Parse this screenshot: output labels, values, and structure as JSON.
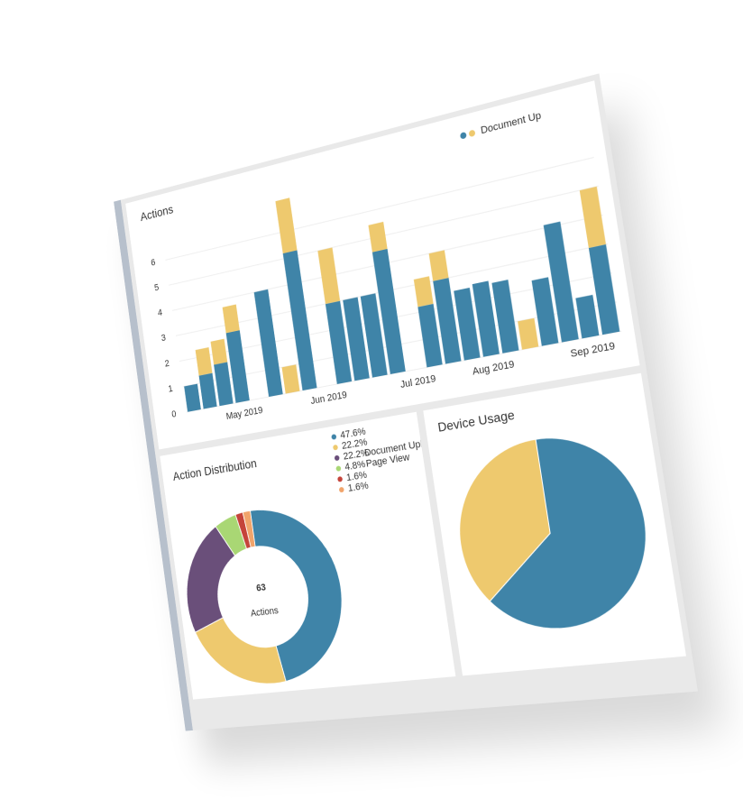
{
  "chart_data": [
    {
      "type": "stacked-bar",
      "title": "Actions",
      "categories": [
        null,
        null,
        null,
        "May 2019",
        null,
        null,
        null,
        null,
        "Jun 2019",
        null,
        null,
        null,
        null,
        "Jul 2019",
        null,
        null,
        null,
        "Aug 2019",
        null,
        null,
        null,
        null,
        "Sep 2019",
        null
      ],
      "series": [
        {
          "color": "#3f84a8",
          "values": [
            1,
            1.3,
            1.6,
            2.7,
            null,
            4,
            0,
            5.2,
            null,
            3,
            3,
            3,
            4.5,
            null,
            2.2,
            3,
            2.5,
            2.6,
            2.5,
            0,
            2.3,
            4.1,
            1.4,
            3
          ]
        },
        {
          "name": "Document Up",
          "color": "#eec96e",
          "values": [
            0,
            1,
            0.9,
            1,
            null,
            0,
            1,
            2,
            null,
            2,
            0,
            0,
            1,
            null,
            1,
            1,
            0,
            0,
            0,
            1,
            0,
            0,
            0,
            2
          ]
        }
      ],
      "ylim": [
        0,
        7
      ],
      "yticks": [
        0,
        1,
        2,
        3,
        4,
        5,
        6
      ],
      "grid": true,
      "legend": "top-right"
    },
    {
      "type": "donut",
      "title": "Action Distribution",
      "total": 63,
      "total_label": "Actions",
      "values": [
        47.6,
        22.2,
        22.2,
        4.8,
        1.6,
        1.6
      ],
      "value_labels": [
        "47.6%",
        "22.2%",
        "22.2%",
        "4.8%",
        "1.6%",
        "1.6%"
      ],
      "names": [
        null,
        null,
        "Document Upload",
        "Page View",
        null,
        null
      ],
      "colors": [
        "#3f84a8",
        "#eec96e",
        "#6a4f7a",
        "#a9d774",
        "#c5443a",
        "#f1a46b"
      ]
    },
    {
      "type": "pie",
      "title": "Device Usage",
      "values": [
        64,
        36
      ],
      "colors": [
        "#3f84a8",
        "#eec96e"
      ]
    }
  ]
}
